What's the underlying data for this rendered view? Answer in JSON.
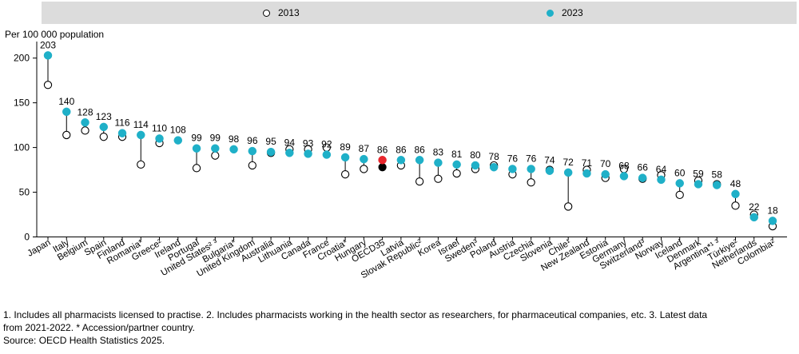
{
  "chart_data": {
    "type": "scatter",
    "subtype": "dumbbell",
    "ylabel": "Per 100 000 population",
    "ylim": [
      0,
      210
    ],
    "yticks": [
      0,
      50,
      100,
      150,
      200
    ],
    "legend": [
      {
        "name": "2013",
        "style": "hollow",
        "color": "#ffffff"
      },
      {
        "name": "2023",
        "style": "filled",
        "color": "#1fb0c8"
      }
    ],
    "highlight_colors": {
      "2023": "#e8262d",
      "2013": "#000000"
    },
    "categories": [
      {
        "name": "Japan",
        "v2013": 170,
        "v2023": 203,
        "label": "203"
      },
      {
        "name": "Italy",
        "v2013": 114,
        "v2023": 140,
        "label": "140"
      },
      {
        "name": "Belgium",
        "v2013": 119,
        "v2023": 128,
        "label": "128"
      },
      {
        "name": "Spain",
        "v2013": 112,
        "v2023": 123,
        "label": "123"
      },
      {
        "name": "Finland",
        "v2013": 112,
        "v2023": 116,
        "label": "116"
      },
      {
        "name": "Romania*",
        "v2013": 81,
        "v2023": 114,
        "label": "114"
      },
      {
        "name": "Greece²",
        "v2013": 105,
        "v2023": 110,
        "label": "110"
      },
      {
        "name": "Ireland",
        "v2013": null,
        "v2023": 108,
        "label": "108"
      },
      {
        "name": "Portugal",
        "v2013": 77,
        "v2023": 99,
        "label": "99"
      },
      {
        "name": "United States² ³",
        "v2013": 91,
        "v2023": 99,
        "label": "99"
      },
      {
        "name": "Bulgaria*",
        "v2013": null,
        "v2023": 98,
        "label": "98"
      },
      {
        "name": "United Kingdom",
        "v2013": 80,
        "v2023": 96,
        "label": "96"
      },
      {
        "name": "Australia",
        "v2013": 94,
        "v2023": 95,
        "label": "95"
      },
      {
        "name": "Lithuania",
        "v2013": 98,
        "v2023": 94,
        "label": "94"
      },
      {
        "name": "Canada",
        "v2013": 98,
        "v2023": 93,
        "label": "93"
      },
      {
        "name": "France",
        "v2013": 100,
        "v2023": 92,
        "label": "92"
      },
      {
        "name": "Croatia*",
        "v2013": 70,
        "v2023": 89,
        "label": "89"
      },
      {
        "name": "Hungary",
        "v2013": 76,
        "v2023": 87,
        "label": "87"
      },
      {
        "name": "OECD35",
        "v2013": 78,
        "v2023": 86,
        "label": "86",
        "highlight": true
      },
      {
        "name": "Latvia",
        "v2013": 80,
        "v2023": 86,
        "label": "86"
      },
      {
        "name": "Slovak Republic²",
        "v2013": 62,
        "v2023": 86,
        "label": "86"
      },
      {
        "name": "Korea",
        "v2013": 65,
        "v2023": 83,
        "label": "83"
      },
      {
        "name": "Israel",
        "v2013": 71,
        "v2023": 81,
        "label": "81"
      },
      {
        "name": "Sweden³",
        "v2013": 76,
        "v2023": 80,
        "label": "80"
      },
      {
        "name": "Poland",
        "v2013": 80,
        "v2023": 78,
        "label": "78"
      },
      {
        "name": "Austria",
        "v2013": 70,
        "v2023": 76,
        "label": "76"
      },
      {
        "name": "Czechia",
        "v2013": 61,
        "v2023": 76,
        "label": "76"
      },
      {
        "name": "Slovenia",
        "v2013": 75,
        "v2023": 74,
        "label": "74"
      },
      {
        "name": "Chile¹",
        "v2013": 34,
        "v2023": 72,
        "label": "72"
      },
      {
        "name": "New Zealand",
        "v2013": 75,
        "v2023": 71,
        "label": "71"
      },
      {
        "name": "Estonia",
        "v2013": 66,
        "v2023": 70,
        "label": "70"
      },
      {
        "name": "Germany",
        "v2013": 76,
        "v2023": 68,
        "label": "68"
      },
      {
        "name": "Switzerland³",
        "v2013": 65,
        "v2023": 66,
        "label": "66"
      },
      {
        "name": "Norway",
        "v2013": 69,
        "v2023": 64,
        "label": "64"
      },
      {
        "name": "Iceland",
        "v2013": 47,
        "v2023": 60,
        "label": "60"
      },
      {
        "name": "Denmark",
        "v2013": 63,
        "v2023": 59,
        "label": "59"
      },
      {
        "name": "Argentina*¹ ³",
        "v2013": 59,
        "v2023": 58,
        "label": "58"
      },
      {
        "name": "Türkiye²",
        "v2013": 35,
        "v2023": 48,
        "label": "48"
      },
      {
        "name": "Netherlands",
        "v2013": 25,
        "v2023": 22,
        "label": "22"
      },
      {
        "name": "Colombia²",
        "v2013": 12,
        "v2023": 18,
        "label": "18"
      }
    ]
  },
  "notes": {
    "line1": "1. Includes all pharmacists licensed to practise. 2. Includes pharmacists working in the health sector as researchers, for pharmaceutical companies, etc. 3. Latest data",
    "line2": "from 2021-2022. * Accession/partner country.",
    "source": "Source: OECD Health Statistics 2025."
  }
}
